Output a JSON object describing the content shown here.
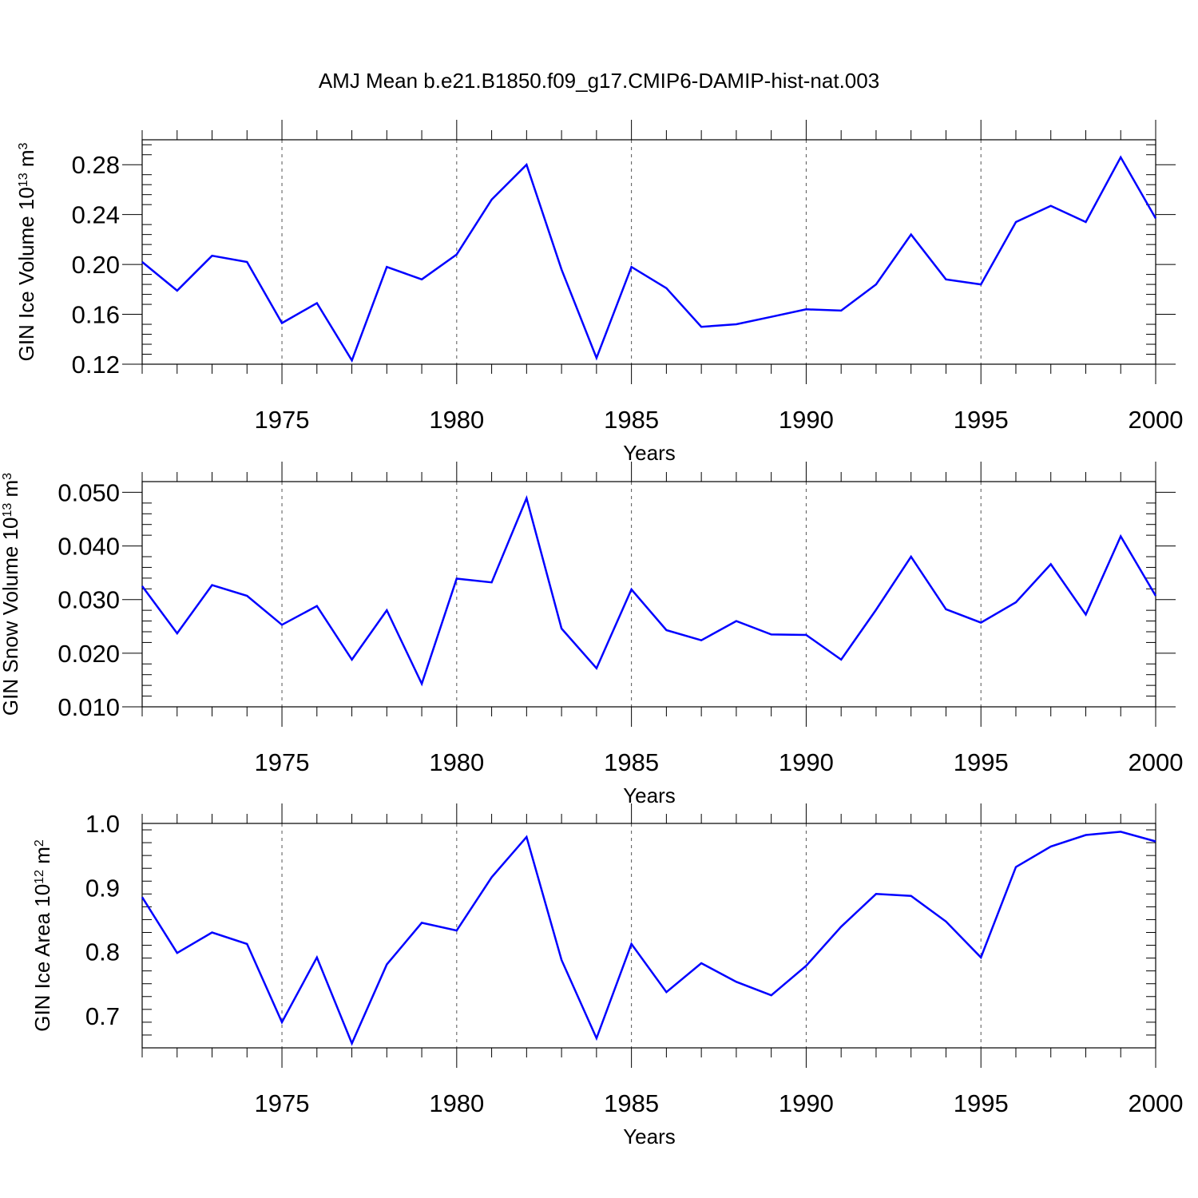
{
  "title": "AMJ Mean b.e21.B1850.f09_g17.CMIP6-DAMIP-hist-nat.003",
  "line_color": "#0000ff",
  "chart_data": [
    {
      "type": "line",
      "ylabel": "GIN Ice Volume 10",
      "ylabel_exp": "13",
      "ylabel_unit": "m",
      "ylabel_unit_exp": "3",
      "xlabel": "Years",
      "xlim": [
        1971,
        2000
      ],
      "ylim": [
        0.12,
        0.3
      ],
      "yticks": [
        0.12,
        0.16,
        0.2,
        0.24,
        0.28
      ],
      "ytick_labels": [
        "0.12",
        "0.16",
        "0.20",
        "0.24",
        "0.28"
      ],
      "xticks": [
        1975,
        1980,
        1985,
        1990,
        1995,
        2000
      ],
      "xtick_labels": [
        "1975",
        "1980",
        "1985",
        "1990",
        "1995",
        "2000"
      ],
      "grid_x": true,
      "x": [
        1971,
        1972,
        1973,
        1974,
        1975,
        1976,
        1977,
        1978,
        1979,
        1980,
        1981,
        1982,
        1983,
        1984,
        1985,
        1986,
        1987,
        1988,
        1989,
        1990,
        1991,
        1992,
        1993,
        1994,
        1995,
        1996,
        1997,
        1998,
        1999,
        2000
      ],
      "values": [
        0.202,
        0.179,
        0.207,
        0.202,
        0.153,
        0.169,
        0.123,
        0.198,
        0.188,
        0.208,
        0.252,
        0.28,
        0.196,
        0.125,
        0.198,
        0.181,
        0.15,
        0.152,
        0.158,
        0.164,
        0.163,
        0.184,
        0.224,
        0.188,
        0.184,
        0.234,
        0.247,
        0.234,
        0.286,
        0.237
      ]
    },
    {
      "type": "line",
      "ylabel": "GIN Snow Volume 10",
      "ylabel_exp": "13",
      "ylabel_unit": "m",
      "ylabel_unit_exp": "3",
      "xlabel": "Years",
      "xlim": [
        1971,
        2000
      ],
      "ylim": [
        0.01,
        0.052
      ],
      "yticks": [
        0.01,
        0.02,
        0.03,
        0.04,
        0.05
      ],
      "ytick_labels": [
        "0.010",
        "0.020",
        "0.030",
        "0.040",
        "0.050"
      ],
      "xticks": [
        1975,
        1980,
        1985,
        1990,
        1995,
        2000
      ],
      "xtick_labels": [
        "1975",
        "1980",
        "1985",
        "1990",
        "1995",
        "2000"
      ],
      "grid_x": true,
      "x": [
        1971,
        1972,
        1973,
        1974,
        1975,
        1976,
        1977,
        1978,
        1979,
        1980,
        1981,
        1982,
        1983,
        1984,
        1985,
        1986,
        1987,
        1988,
        1989,
        1990,
        1991,
        1992,
        1993,
        1994,
        1995,
        1996,
        1997,
        1998,
        1999,
        2000
      ],
      "values": [
        0.0325,
        0.0237,
        0.0327,
        0.0307,
        0.0253,
        0.0288,
        0.0188,
        0.028,
        0.0143,
        0.0339,
        0.0332,
        0.0489,
        0.0246,
        0.0172,
        0.0319,
        0.0243,
        0.0224,
        0.026,
        0.0235,
        0.0234,
        0.0188,
        0.0281,
        0.038,
        0.0282,
        0.0257,
        0.0295,
        0.0366,
        0.0272,
        0.0418,
        0.0307
      ]
    },
    {
      "type": "line",
      "ylabel": "GIN Ice Area 10",
      "ylabel_exp": "12",
      "ylabel_unit": "m",
      "ylabel_unit_exp": "2",
      "xlabel": "Years",
      "xlim": [
        1971,
        2000
      ],
      "ylim": [
        0.65,
        1.0
      ],
      "yticks": [
        0.7,
        0.8,
        0.9,
        1.0
      ],
      "ytick_labels": [
        "0.7",
        "0.8",
        "0.9",
        "1.0"
      ],
      "xticks": [
        1975,
        1980,
        1985,
        1990,
        1995,
        2000
      ],
      "xtick_labels": [
        "1975",
        "1980",
        "1985",
        "1990",
        "1995",
        "2000"
      ],
      "grid_x": true,
      "x": [
        1971,
        1972,
        1973,
        1974,
        1975,
        1976,
        1977,
        1978,
        1979,
        1980,
        1981,
        1982,
        1983,
        1984,
        1985,
        1986,
        1987,
        1988,
        1989,
        1990,
        1991,
        1992,
        1993,
        1994,
        1995,
        1996,
        1997,
        1998,
        1999,
        2000
      ],
      "values": [
        0.885,
        0.798,
        0.83,
        0.812,
        0.69,
        0.791,
        0.657,
        0.78,
        0.845,
        0.833,
        0.916,
        0.979,
        0.787,
        0.665,
        0.812,
        0.737,
        0.782,
        0.753,
        0.732,
        0.778,
        0.839,
        0.89,
        0.887,
        0.847,
        0.791,
        0.932,
        0.964,
        0.982,
        0.987,
        0.972
      ]
    }
  ]
}
